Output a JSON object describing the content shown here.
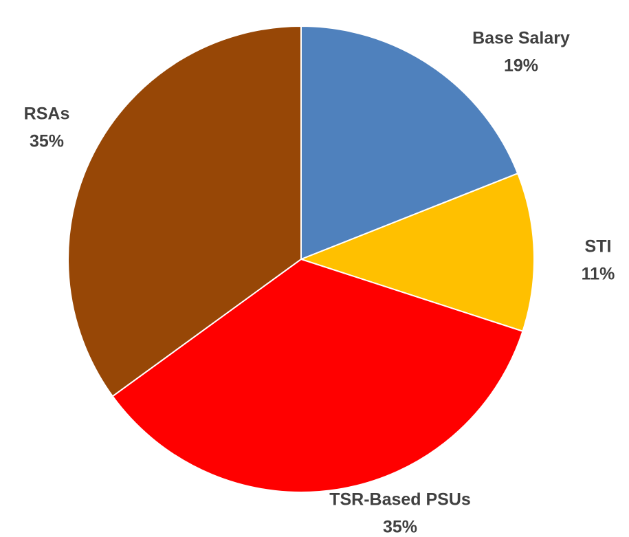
{
  "chart_data": {
    "type": "pie",
    "title": "",
    "start_angle_deg": 0,
    "direction": "clockwise",
    "slices": [
      {
        "label": "Base Salary",
        "value": 19,
        "value_label": "19%",
        "color": "#4F81BD"
      },
      {
        "label": "STI",
        "value": 11,
        "value_label": "11%",
        "color": "#FFC000"
      },
      {
        "label": "TSR-Based PSUs",
        "value": 35,
        "value_label": "35%",
        "color": "#FF0000"
      },
      {
        "label": "RSAs",
        "value": 35,
        "value_label": "35%",
        "color": "#974706"
      }
    ],
    "legend": "none",
    "data_labels": "outside"
  }
}
